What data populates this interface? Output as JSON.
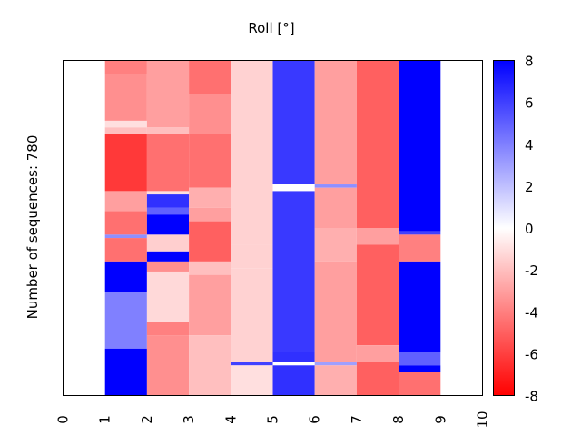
{
  "chart_data": {
    "type": "heatmap",
    "title": "Roll [°]",
    "ylabel": "Number of sequences: 780",
    "xlabel": "",
    "x_ticks": [
      "0",
      "1",
      "2",
      "3",
      "4",
      "5",
      "6",
      "7",
      "8",
      "9",
      "10"
    ],
    "xlim": [
      0,
      10
    ],
    "colorbar": {
      "ticks": [
        "8",
        "6",
        "4",
        "2",
        "0",
        "-2",
        "-4",
        "-6",
        "-8"
      ],
      "range": [
        -8,
        8
      ],
      "colormap": "bwr_reversed",
      "low_color": "#ff0000",
      "mid_color": "#ffffff",
      "high_color": "#0000ff"
    },
    "n_rows": 780,
    "columns": [
      {
        "x": 1,
        "segments": [
          [
            0,
            0.04,
            -4
          ],
          [
            0.04,
            0.18,
            -3.5
          ],
          [
            0.18,
            0.2,
            -1
          ],
          [
            0.2,
            0.22,
            -2
          ],
          [
            0.22,
            0.39,
            -6.2
          ],
          [
            0.39,
            0.45,
            -3
          ],
          [
            0.45,
            0.52,
            -4.5
          ],
          [
            0.52,
            0.53,
            3.5
          ],
          [
            0.53,
            0.6,
            -4.5
          ],
          [
            0.6,
            0.69,
            8
          ],
          [
            0.69,
            0.86,
            4
          ],
          [
            0.86,
            1,
            8
          ]
        ]
      },
      {
        "x": 2,
        "segments": [
          [
            0,
            0.2,
            -3
          ],
          [
            0.2,
            0.22,
            -2
          ],
          [
            0.22,
            0.39,
            -4.5
          ],
          [
            0.39,
            0.4,
            -1
          ],
          [
            0.4,
            0.44,
            6.5
          ],
          [
            0.44,
            0.46,
            5
          ],
          [
            0.46,
            0.52,
            8
          ],
          [
            0.52,
            0.57,
            -1.5
          ],
          [
            0.57,
            0.6,
            8
          ],
          [
            0.6,
            0.63,
            -3.5
          ],
          [
            0.63,
            0.78,
            -1.2
          ],
          [
            0.78,
            0.82,
            -4
          ],
          [
            0.82,
            1,
            -3.5
          ]
        ]
      },
      {
        "x": 3,
        "segments": [
          [
            0,
            0.1,
            -4.5
          ],
          [
            0.1,
            0.22,
            -3.5
          ],
          [
            0.22,
            0.38,
            -4.5
          ],
          [
            0.38,
            0.44,
            -2.5
          ],
          [
            0.44,
            0.48,
            -3
          ],
          [
            0.48,
            0.6,
            -5
          ],
          [
            0.6,
            0.64,
            -2
          ],
          [
            0.64,
            0.82,
            -3
          ],
          [
            0.82,
            1,
            -2
          ]
        ]
      },
      {
        "x": 4,
        "segments": [
          [
            0,
            0.55,
            -1.4
          ],
          [
            0.55,
            0.62,
            -1.4
          ],
          [
            0.62,
            0.9,
            -1.4
          ],
          [
            0.9,
            0.91,
            6
          ],
          [
            0.91,
            1,
            -1
          ]
        ]
      },
      {
        "x": 5,
        "segments": [
          [
            0,
            0.37,
            6.2
          ],
          [
            0.37,
            0.39,
            0
          ],
          [
            0.39,
            0.87,
            6.2
          ],
          [
            0.87,
            0.9,
            6.5
          ],
          [
            0.9,
            0.91,
            0
          ],
          [
            0.91,
            1,
            6.5
          ]
        ]
      },
      {
        "x": 6,
        "segments": [
          [
            0,
            0.37,
            -3
          ],
          [
            0.37,
            0.38,
            3.5
          ],
          [
            0.38,
            0.5,
            -3
          ],
          [
            0.5,
            0.6,
            -2.5
          ],
          [
            0.6,
            0.9,
            -3
          ],
          [
            0.9,
            0.91,
            3
          ],
          [
            0.91,
            1,
            -2.5
          ]
        ]
      },
      {
        "x": 7,
        "segments": [
          [
            0,
            0.5,
            -5
          ],
          [
            0.5,
            0.55,
            -3
          ],
          [
            0.55,
            0.85,
            -5
          ],
          [
            0.85,
            0.9,
            -3
          ],
          [
            0.9,
            1,
            -5
          ]
        ]
      },
      {
        "x": 8,
        "segments": [
          [
            0,
            0.51,
            8
          ],
          [
            0.51,
            0.52,
            6
          ],
          [
            0.52,
            0.6,
            -4
          ],
          [
            0.6,
            0.87,
            8
          ],
          [
            0.87,
            0.91,
            5
          ],
          [
            0.91,
            0.93,
            8
          ],
          [
            0.93,
            1,
            -4.5
          ]
        ]
      }
    ]
  }
}
